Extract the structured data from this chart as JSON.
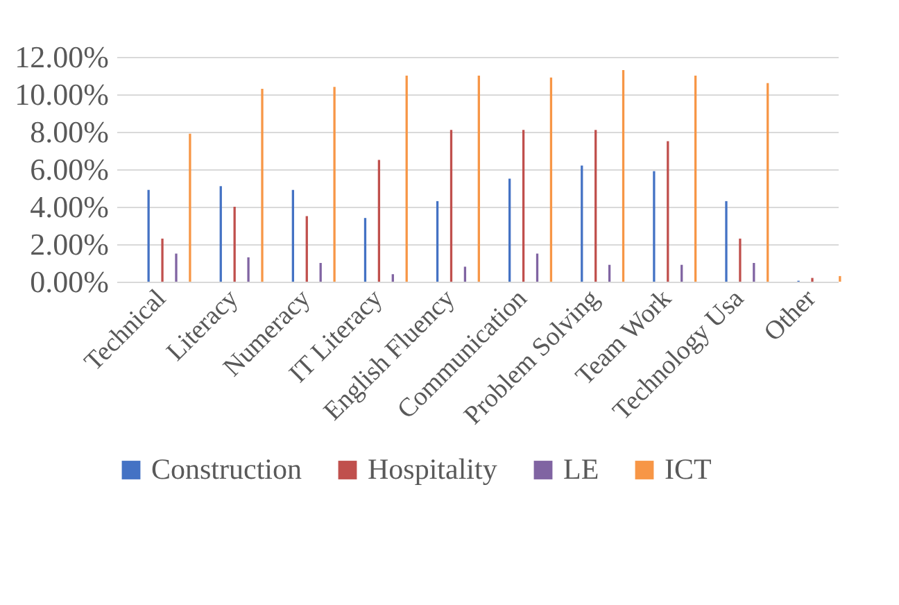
{
  "chart_data": {
    "type": "bar",
    "categories": [
      "Technical",
      "Literacy",
      "Numeracy",
      "IT Literacy",
      "English Fluency",
      "Communication",
      "Problem Solving",
      "Team Work",
      "Technology Usa",
      "Other"
    ],
    "series": [
      {
        "name": "Construction",
        "color": "#4472c4",
        "values": [
          4.9,
          5.1,
          4.9,
          3.4,
          4.3,
          5.5,
          6.2,
          5.9,
          4.3,
          0.05
        ]
      },
      {
        "name": "Hospitality",
        "color": "#c0504d",
        "values": [
          2.3,
          4.0,
          3.5,
          6.5,
          8.1,
          8.1,
          8.1,
          7.5,
          2.3,
          0.2
        ]
      },
      {
        "name": "LE",
        "color": "#8064a2",
        "values": [
          1.5,
          1.3,
          1.0,
          0.4,
          0.8,
          1.5,
          0.9,
          0.9,
          1.0,
          0.0
        ]
      },
      {
        "name": "ICT",
        "color": "#f79646",
        "values": [
          7.9,
          10.3,
          10.4,
          11.0,
          11.0,
          10.9,
          11.3,
          11.0,
          10.6,
          0.3
        ]
      }
    ],
    "ylim": [
      0,
      12
    ],
    "yticks": [
      {
        "value": 0,
        "label": "0.00%"
      },
      {
        "value": 2,
        "label": "2.00%"
      },
      {
        "value": 4,
        "label": "4.00%"
      },
      {
        "value": 6,
        "label": "6.00%"
      },
      {
        "value": 8,
        "label": "8.00%"
      },
      {
        "value": 10,
        "label": "10.00%"
      },
      {
        "value": 12,
        "label": "12.00%"
      }
    ],
    "grid": "y",
    "legend": "bottom"
  }
}
